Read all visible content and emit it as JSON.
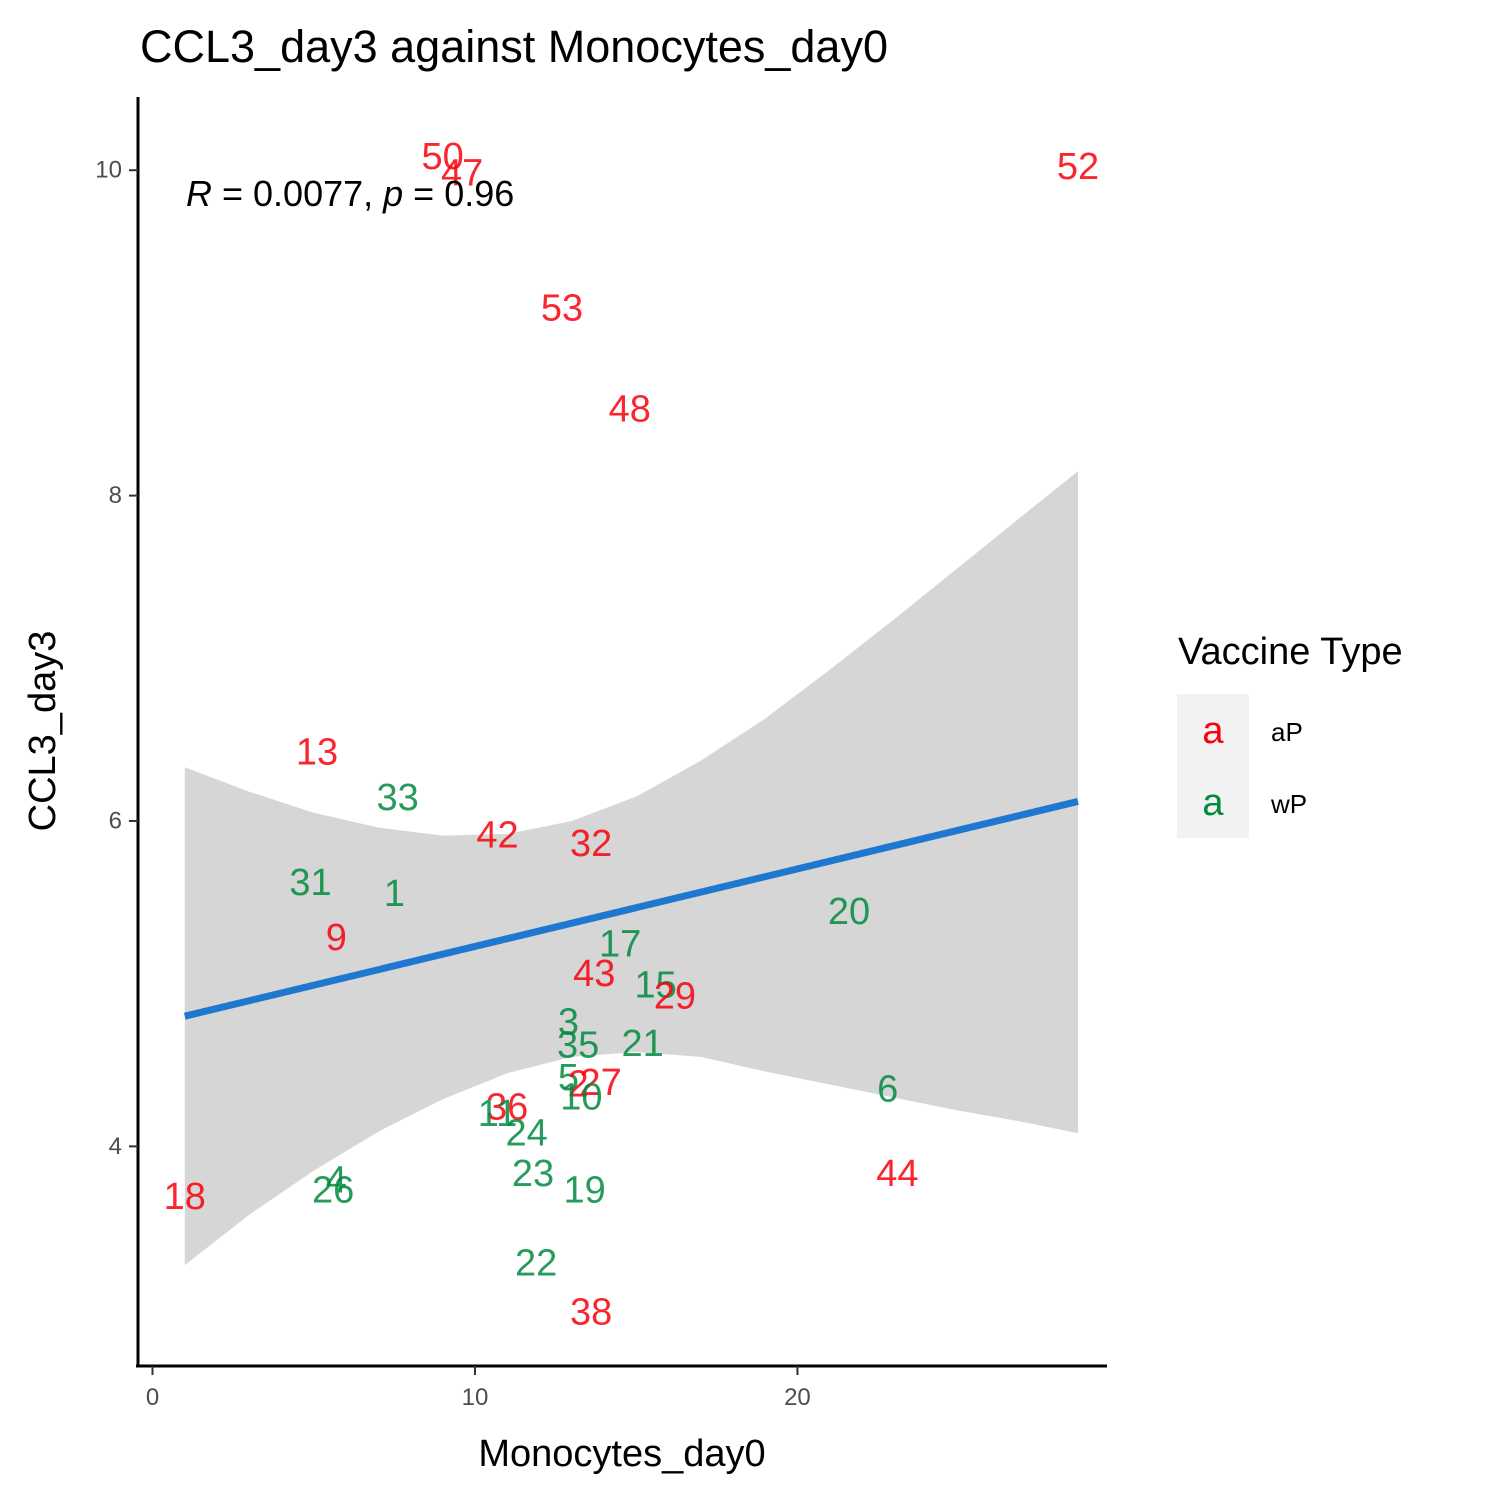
{
  "chart_data": {
    "type": "scatter",
    "title": "CCL3_day3 against Monocytes_day0",
    "xlabel": "Monocytes_day0",
    "ylabel": "CCL3_day3",
    "xlim": [
      -0.45,
      29.6
    ],
    "ylim": [
      2.65,
      10.45
    ],
    "x_ticks": [
      0,
      10,
      20
    ],
    "y_ticks": [
      4,
      6,
      8,
      10
    ],
    "grid": false,
    "annotation": {
      "r_label": "R",
      "r_value": " = 0.0077, ",
      "p_label": "p",
      "p_value": " = 0.96"
    },
    "legend": {
      "title": "Vaccine Type",
      "position": "right",
      "key_glyph": "a",
      "items": [
        {
          "label": "aP",
          "color": "#f8000c"
        },
        {
          "label": "wP",
          "color": "#008a3e"
        }
      ]
    },
    "colors": {
      "aP": "#f8000c",
      "wP": "#008a3e",
      "fit_line": "#1f78d0",
      "ci_band": "#d6d6d6"
    },
    "fit": {
      "method": "lm",
      "x_range": [
        1.0,
        28.7
      ],
      "y_at_start": 4.8,
      "y_at_end": 6.12
    },
    "ci_band": {
      "x": [
        1.0,
        3.0,
        5.0,
        7.0,
        9.0,
        11.0,
        13.0,
        15.0,
        17.0,
        19.0,
        21.0,
        23.0,
        25.0,
        27.0,
        28.7
      ],
      "upper": [
        6.33,
        6.18,
        6.05,
        5.96,
        5.91,
        5.92,
        6.0,
        6.15,
        6.37,
        6.63,
        6.93,
        7.24,
        7.56,
        7.88,
        8.15
      ],
      "lower": [
        3.27,
        3.58,
        3.85,
        4.09,
        4.29,
        4.45,
        4.55,
        4.58,
        4.55,
        4.46,
        4.38,
        4.3,
        4.22,
        4.15,
        4.08
      ]
    },
    "points": [
      {
        "label": "50",
        "x": 9.0,
        "y": 10.08,
        "group": "aP"
      },
      {
        "label": "47",
        "x": 9.6,
        "y": 9.98,
        "group": "aP"
      },
      {
        "label": "52",
        "x": 28.7,
        "y": 10.02,
        "group": "aP"
      },
      {
        "label": "53",
        "x": 12.7,
        "y": 9.15,
        "group": "aP"
      },
      {
        "label": "48",
        "x": 14.8,
        "y": 8.53,
        "group": "aP"
      },
      {
        "label": "13",
        "x": 5.1,
        "y": 6.42,
        "group": "aP"
      },
      {
        "label": "33",
        "x": 7.6,
        "y": 6.14,
        "group": "wP"
      },
      {
        "label": "42",
        "x": 10.7,
        "y": 5.91,
        "group": "aP"
      },
      {
        "label": "32",
        "x": 13.6,
        "y": 5.86,
        "group": "aP"
      },
      {
        "label": "31",
        "x": 4.9,
        "y": 5.62,
        "group": "wP"
      },
      {
        "label": "1",
        "x": 7.5,
        "y": 5.55,
        "group": "wP"
      },
      {
        "label": "20",
        "x": 21.6,
        "y": 5.44,
        "group": "wP"
      },
      {
        "label": "9",
        "x": 5.7,
        "y": 5.28,
        "group": "aP"
      },
      {
        "label": "17",
        "x": 14.5,
        "y": 5.24,
        "group": "wP"
      },
      {
        "label": "43",
        "x": 13.7,
        "y": 5.06,
        "group": "aP"
      },
      {
        "label": "15",
        "x": 15.6,
        "y": 4.99,
        "group": "wP"
      },
      {
        "label": "29",
        "x": 16.2,
        "y": 4.92,
        "group": "aP"
      },
      {
        "label": "3",
        "x": 12.9,
        "y": 4.76,
        "group": "wP"
      },
      {
        "label": "35",
        "x": 13.2,
        "y": 4.62,
        "group": "wP"
      },
      {
        "label": "21",
        "x": 15.2,
        "y": 4.63,
        "group": "wP"
      },
      {
        "label": "5",
        "x": 12.9,
        "y": 4.42,
        "group": "wP"
      },
      {
        "label": "2",
        "x": 13.2,
        "y": 4.38,
        "group": "aP"
      },
      {
        "label": "27",
        "x": 13.9,
        "y": 4.39,
        "group": "aP"
      },
      {
        "label": "10",
        "x": 13.3,
        "y": 4.3,
        "group": "wP"
      },
      {
        "label": "6",
        "x": 22.8,
        "y": 4.35,
        "group": "wP"
      },
      {
        "label": "36",
        "x": 11.0,
        "y": 4.24,
        "group": "aP"
      },
      {
        "label": "11",
        "x": 10.7,
        "y": 4.2,
        "group": "wP"
      },
      {
        "label": "24",
        "x": 11.6,
        "y": 4.08,
        "group": "wP"
      },
      {
        "label": "23",
        "x": 11.8,
        "y": 3.83,
        "group": "wP"
      },
      {
        "label": "44",
        "x": 23.1,
        "y": 3.83,
        "group": "aP"
      },
      {
        "label": "4",
        "x": 5.7,
        "y": 3.79,
        "group": "wP"
      },
      {
        "label": "26",
        "x": 5.6,
        "y": 3.73,
        "group": "wP"
      },
      {
        "label": "19",
        "x": 13.4,
        "y": 3.73,
        "group": "wP"
      },
      {
        "label": "18",
        "x": 1.0,
        "y": 3.69,
        "group": "aP"
      },
      {
        "label": "22",
        "x": 11.9,
        "y": 3.28,
        "group": "wP"
      },
      {
        "label": "38",
        "x": 13.6,
        "y": 2.98,
        "group": "aP"
      }
    ]
  }
}
